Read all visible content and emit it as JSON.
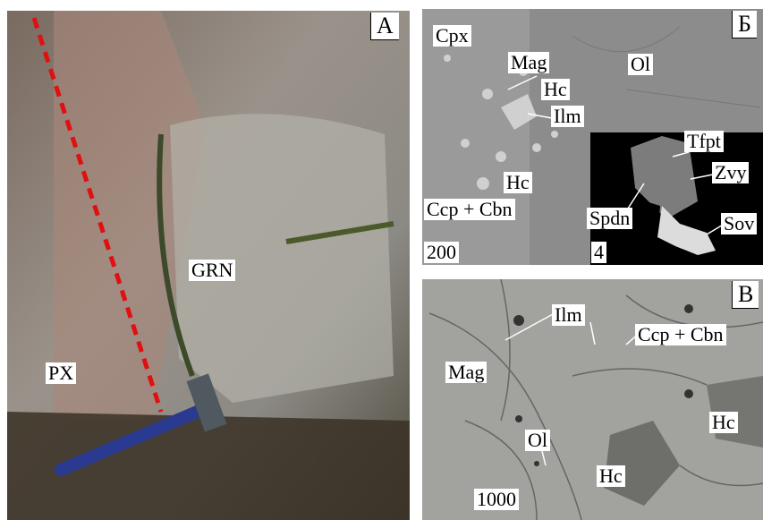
{
  "panels": [
    {
      "letter": "А",
      "labels": [
        "GRN",
        "PX"
      ]
    },
    {
      "letter": "Б",
      "labels": [
        "Cpx",
        "Mag",
        "Ol",
        "Hc",
        "Ilm",
        "Hc",
        "Ccp + Cbn"
      ],
      "scale": "200",
      "inset": {
        "labels": [
          "Tfpt",
          "Zvy",
          "Spdn",
          "Sov"
        ],
        "scale": "4"
      }
    },
    {
      "letter": "В",
      "labels": [
        "Ilm",
        "Ccp + Cbn",
        "Mag",
        "Hc",
        "Ol",
        "Hc"
      ],
      "scale": "1000"
    }
  ]
}
